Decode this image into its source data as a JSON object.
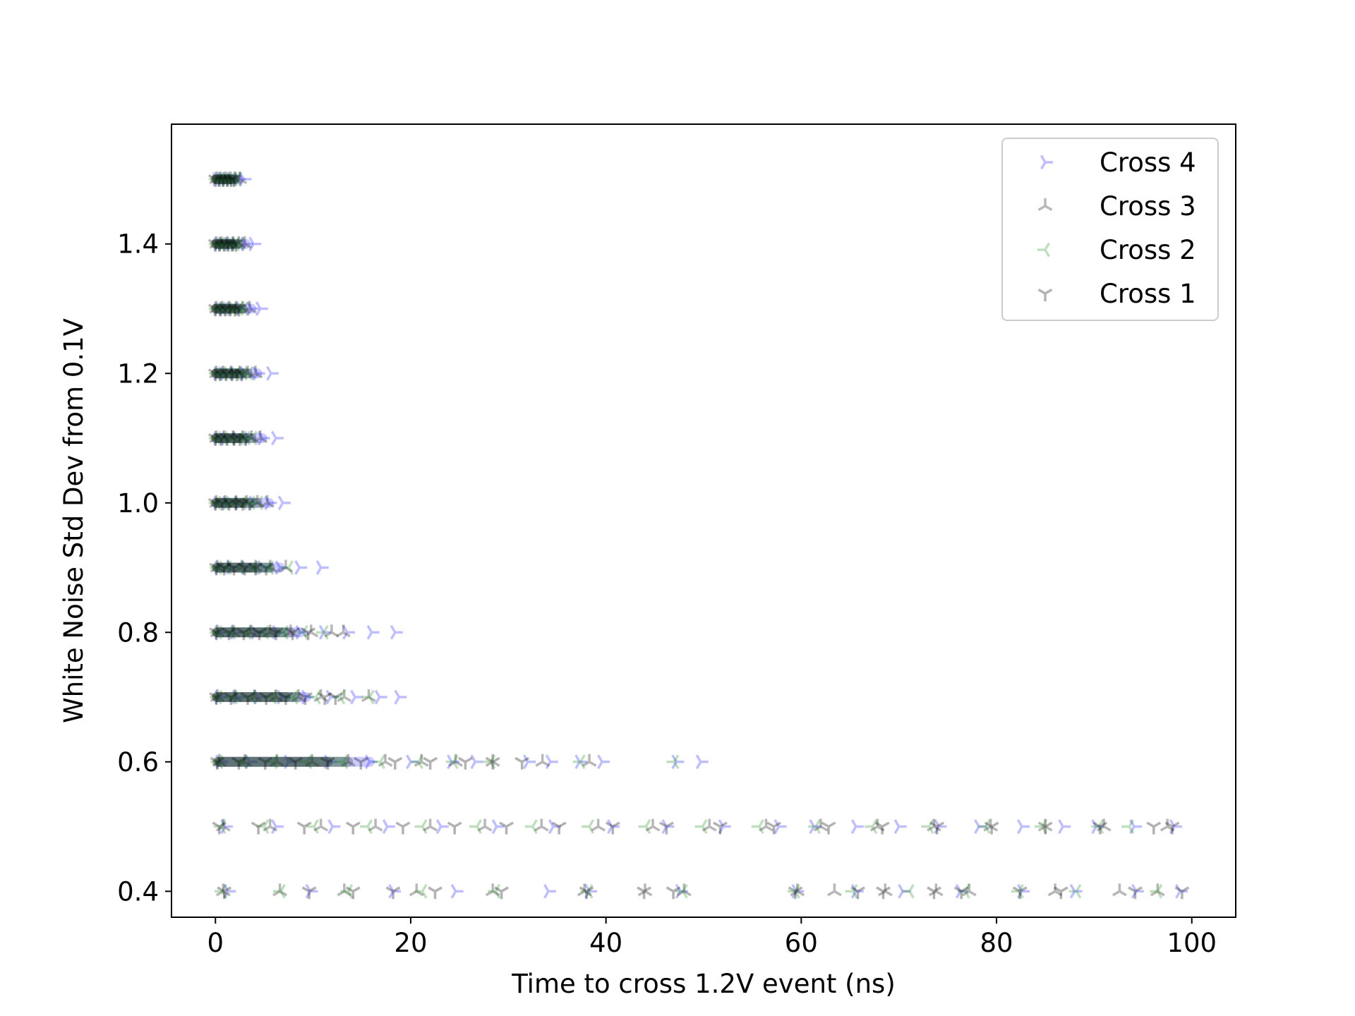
{
  "chart_data": {
    "type": "scatter",
    "title": "",
    "xlabel": "Time to cross 1.2V event (ns)",
    "ylabel": "White Noise Std Dev from 0.1V",
    "xlim": [
      -4.5,
      104.5
    ],
    "ylim": [
      0.36,
      1.585
    ],
    "xticks": [
      0,
      20,
      40,
      60,
      80,
      100
    ],
    "yticks": [
      0.4,
      0.6,
      0.8,
      1.0,
      1.2,
      1.4
    ],
    "ytick_labels": [
      "0.4",
      "0.6",
      "0.8",
      "1.0",
      "1.2",
      "1.4"
    ],
    "grid": false,
    "legend": {
      "position": "top-right"
    },
    "series": [
      {
        "name": "Cross 4",
        "color": "#0000ff",
        "alpha": 0.25,
        "marker": "tri-right",
        "points": [
          {
            "y": 1.5,
            "max": 3.0,
            "x": [
              0.2,
              0.6,
              1.1,
              1.6,
              2.3,
              2.9
            ]
          },
          {
            "y": 1.4,
            "max": 4.0,
            "x": [
              0.3,
              0.8,
              1.4,
              2.1,
              3.1,
              3.9
            ]
          },
          {
            "y": 1.3,
            "max": 4.7,
            "x": [
              0.3,
              0.9,
              1.6,
              2.6,
              3.7,
              4.6
            ]
          },
          {
            "y": 1.2,
            "max": 5.8,
            "x": [
              0.3,
              1.0,
              1.9,
              3.0,
              4.3,
              5.7
            ]
          },
          {
            "y": 1.1,
            "max": 6.3,
            "x": [
              0.3,
              1.1,
              2.2,
              3.4,
              4.8,
              6.2
            ]
          },
          {
            "y": 1.0,
            "max": 7.0,
            "x": [
              0.3,
              1.2,
              2.4,
              3.9,
              5.5,
              6.9
            ]
          },
          {
            "y": 0.9,
            "max": 10.9,
            "x": [
              0.4,
              1.6,
              3.1,
              4.8,
              6.6,
              8.6,
              10.8
            ]
          },
          {
            "y": 0.8,
            "max": 18.5,
            "x": [
              0.4,
              2.0,
              4.1,
              6.3,
              8.7,
              11.1,
              13.5,
              16.0,
              18.4
            ]
          },
          {
            "y": 0.7,
            "max": 18.9,
            "x": [
              0.4,
              2.2,
              4.4,
              6.8,
              9.3,
              11.8,
              14.3,
              16.8,
              18.8
            ]
          },
          {
            "y": 0.6,
            "max": 49.8,
            "x": [
              0.5,
              3.5,
              7.5,
              11.6,
              15.8,
              20.0,
              24.2,
              26.6,
              32.0,
              34.3,
              37.3,
              39.6,
              47.2,
              49.7
            ]
          },
          {
            "y": 0.5,
            "max": 98.3,
            "x": [
              1.0,
              6.2,
              12.0,
              17.6,
              23.1,
              28.8,
              34.6,
              40.6,
              46.2,
              52.0,
              57.7,
              61.3,
              65.6,
              70.0,
              74.1,
              78.2,
              82.6,
              86.8,
              90.2,
              94.1,
              98.2
            ]
          },
          {
            "y": 0.4,
            "max": 98.9,
            "x": [
              1.3,
              9.7,
              18.2,
              24.6,
              34.1,
              38.3,
              47.6,
              59.5,
              65.6,
              70.4,
              76.3,
              82.6,
              88.0,
              94.3,
              98.8
            ]
          }
        ]
      },
      {
        "name": "Cross 3",
        "color": "#333333",
        "alpha": 0.35,
        "marker": "tri-down",
        "points": [
          {
            "y": 1.5,
            "max": 2.6,
            "x": [
              0.1,
              0.5,
              1.0,
              1.5,
              2.0,
              2.5
            ]
          },
          {
            "y": 1.4,
            "max": 3.1,
            "x": [
              0.1,
              0.6,
              1.2,
              1.8,
              2.4,
              3.0
            ]
          },
          {
            "y": 1.3,
            "max": 3.6,
            "x": [
              0.1,
              0.7,
              1.4,
              2.1,
              2.8,
              3.5
            ]
          },
          {
            "y": 1.2,
            "max": 4.2,
            "x": [
              0.1,
              0.8,
              1.6,
              2.5,
              3.3,
              4.1
            ]
          },
          {
            "y": 1.1,
            "max": 4.7,
            "x": [
              0.1,
              0.9,
              1.8,
              2.8,
              3.7,
              4.6
            ]
          },
          {
            "y": 1.0,
            "max": 5.4,
            "x": [
              0.1,
              1.0,
              2.1,
              3.2,
              4.3,
              5.3
            ]
          },
          {
            "y": 0.9,
            "max": 7.3,
            "x": [
              0.2,
              1.3,
              2.7,
              4.1,
              5.6,
              7.2
            ]
          },
          {
            "y": 0.8,
            "max": 13.2,
            "x": [
              0.2,
              1.8,
              3.6,
              5.6,
              7.7,
              9.8,
              11.9,
              13.1
            ]
          },
          {
            "y": 0.7,
            "max": 15.8,
            "x": [
              0.2,
              2.0,
              4.0,
              6.2,
              8.5,
              10.8,
              13.2,
              15.7
            ]
          },
          {
            "y": 0.6,
            "max": 38.4,
            "x": [
              0.4,
              3.0,
              6.3,
              9.9,
              13.6,
              17.4,
              21.1,
              24.6,
              28.4,
              33.5,
              38.3
            ]
          },
          {
            "y": 0.5,
            "max": 97.6,
            "x": [
              0.8,
              5.6,
              10.8,
              16.4,
              22.0,
              27.6,
              33.4,
              39.2,
              44.8,
              50.6,
              56.4,
              62.0,
              67.8,
              73.6,
              79.4,
              85.0,
              91.0,
              97.5
            ]
          },
          {
            "y": 0.4,
            "max": 96.6,
            "x": [
              0.8,
              6.6,
              13.2,
              20.6,
              28.4,
              37.8,
              44.0,
              48.0,
              59.6,
              63.4,
              68.6,
              73.8,
              77.2,
              86.0,
              92.6,
              96.5
            ]
          }
        ]
      },
      {
        "name": "Cross 2",
        "color": "#008000",
        "alpha": 0.25,
        "marker": "tri-left",
        "points": [
          {
            "y": 1.5,
            "max": 2.3,
            "x": [
              0.1,
              0.5,
              0.9,
              1.3,
              1.8,
              2.2
            ]
          },
          {
            "y": 1.4,
            "max": 2.6,
            "x": [
              0.1,
              0.5,
              1.0,
              1.5,
              2.0,
              2.5
            ]
          },
          {
            "y": 1.3,
            "max": 3.0,
            "x": [
              0.1,
              0.6,
              1.2,
              1.8,
              2.4,
              2.9
            ]
          },
          {
            "y": 1.2,
            "max": 3.5,
            "x": [
              0.1,
              0.7,
              1.4,
              2.1,
              2.8,
              3.4
            ]
          },
          {
            "y": 1.1,
            "max": 3.9,
            "x": [
              0.1,
              0.8,
              1.6,
              2.4,
              3.1,
              3.8
            ]
          },
          {
            "y": 1.0,
            "max": 4.5,
            "x": [
              0.1,
              0.9,
              1.8,
              2.7,
              3.6,
              4.4
            ]
          },
          {
            "y": 0.9,
            "max": 7.6,
            "x": [
              0.2,
              1.2,
              2.5,
              3.9,
              5.5,
              7.5
            ]
          },
          {
            "y": 0.8,
            "max": 11.2,
            "x": [
              0.2,
              1.6,
              3.2,
              5.0,
              7.0,
              9.0,
              11.1
            ]
          },
          {
            "y": 0.7,
            "max": 15.9,
            "x": [
              0.2,
              1.8,
              3.7,
              5.8,
              8.0,
              10.3,
              12.8,
              15.8
            ]
          },
          {
            "y": 0.6,
            "max": 47.1,
            "x": [
              0.3,
              2.8,
              5.9,
              9.4,
              13.1,
              16.9,
              20.8,
              24.4,
              28.2,
              37.4,
              47.0
            ]
          },
          {
            "y": 0.5,
            "max": 93.7,
            "x": [
              0.6,
              5.0,
              10.1,
              15.6,
              21.2,
              26.8,
              32.5,
              38.3,
              44.1,
              49.9,
              55.7,
              61.5,
              67.3,
              73.1,
              78.9,
              84.7,
              90.5,
              93.6
            ]
          },
          {
            "y": 0.4,
            "max": 96.6,
            "x": [
              0.7,
              6.7,
              13.6,
              21.2,
              28.7,
              38.2,
              47.9,
              59.4,
              65.3,
              71.1,
              76.8,
              82.3,
              88.2,
              96.5
            ]
          }
        ]
      },
      {
        "name": "Cross 1",
        "color": "#000000",
        "alpha": 0.3,
        "marker": "tri-up",
        "points": [
          {
            "y": 1.5,
            "max": 2.0,
            "x": [
              0.0,
              0.4,
              0.8,
              1.2,
              1.6,
              1.9
            ]
          },
          {
            "y": 1.4,
            "max": 2.2,
            "x": [
              0.0,
              0.4,
              0.9,
              1.3,
              1.7,
              2.1
            ]
          },
          {
            "y": 1.3,
            "max": 2.5,
            "x": [
              0.0,
              0.5,
              1.0,
              1.5,
              2.0,
              2.4
            ]
          },
          {
            "y": 1.2,
            "max": 2.8,
            "x": [
              0.0,
              0.5,
              1.1,
              1.7,
              2.2,
              2.7
            ]
          },
          {
            "y": 1.1,
            "max": 3.2,
            "x": [
              0.0,
              0.6,
              1.2,
              1.9,
              2.5,
              3.1
            ]
          },
          {
            "y": 1.0,
            "max": 3.6,
            "x": [
              0.0,
              0.7,
              1.4,
              2.1,
              2.8,
              3.5
            ]
          },
          {
            "y": 0.9,
            "max": 5.3,
            "x": [
              0.1,
              0.9,
              1.9,
              3.0,
              4.1,
              5.2
            ]
          },
          {
            "y": 0.8,
            "max": 9.6,
            "x": [
              0.1,
              1.4,
              2.9,
              4.5,
              6.2,
              7.9,
              9.5
            ]
          },
          {
            "y": 0.7,
            "max": 12.4,
            "x": [
              0.1,
              1.6,
              3.3,
              5.2,
              7.2,
              9.2,
              11.2,
              12.3
            ]
          },
          {
            "y": 0.6,
            "max": 31.5,
            "x": [
              0.2,
              2.4,
              5.1,
              8.2,
              11.5,
              14.9,
              18.4,
              22.0,
              25.6,
              28.4,
              31.4
            ]
          },
          {
            "y": 0.5,
            "max": 98.1,
            "x": [
              0.4,
              4.4,
              9.1,
              14.1,
              19.2,
              24.5,
              29.8,
              35.2,
              40.7,
              46.2,
              51.7,
              57.2,
              62.8,
              68.3,
              73.9,
              79.5,
              85.0,
              90.6,
              96.1,
              98.0
            ]
          },
          {
            "y": 0.4,
            "max": 99.1,
            "x": [
              0.9,
              9.6,
              14.1,
              18.2,
              22.5,
              29.3,
              38.0,
              43.9,
              46.9,
              59.4,
              65.8,
              68.4,
              73.6,
              76.4,
              82.4,
              86.6,
              94.2,
              99.0
            ]
          }
        ]
      }
    ]
  }
}
